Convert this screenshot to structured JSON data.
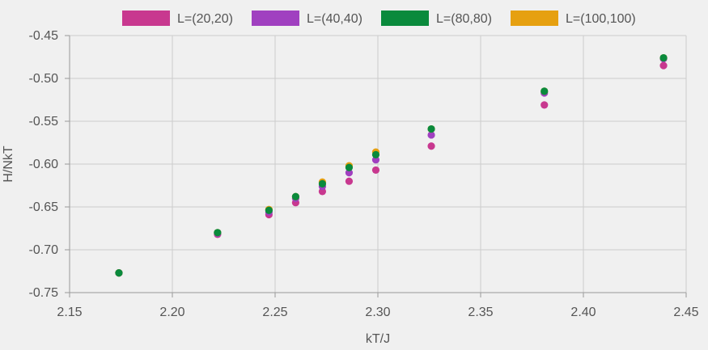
{
  "chart_data": {
    "type": "scatter",
    "xlabel": "kT/J",
    "ylabel": "H/NkT",
    "xlim": [
      2.15,
      2.45
    ],
    "ylim": [
      -0.75,
      -0.45
    ],
    "xticks": [
      "2.15",
      "2.20",
      "2.25",
      "2.30",
      "2.35",
      "2.40",
      "2.45"
    ],
    "yticks": [
      "-0.45",
      "-0.50",
      "-0.55",
      "-0.60",
      "-0.65",
      "-0.70",
      "-0.75"
    ],
    "grid": true,
    "legend_position": "top",
    "x": [
      2.174,
      2.222,
      2.247,
      2.26,
      2.273,
      2.286,
      2.299,
      2.326,
      2.381,
      2.439
    ],
    "series": [
      {
        "name": "L=(20,20)",
        "color": "#c8388f",
        "values": [
          -0.727,
          -0.682,
          -0.659,
          -0.645,
          -0.632,
          -0.62,
          -0.607,
          -0.579,
          -0.531,
          -0.485
        ]
      },
      {
        "name": "L=(40,40)",
        "color": "#a040c0",
        "values": [
          -0.727,
          -0.681,
          -0.656,
          -0.64,
          -0.626,
          -0.61,
          -0.595,
          -0.566,
          -0.517,
          -0.477
        ]
      },
      {
        "name": "L=(100,100)",
        "color": "#e6a010",
        "values": [
          -0.727,
          -0.68,
          -0.653,
          -0.638,
          -0.621,
          -0.602,
          -0.586,
          -0.559,
          -0.515,
          -0.476
        ]
      },
      {
        "name": "L=(80,80)",
        "color": "#0a8a3c",
        "values": [
          -0.727,
          -0.68,
          -0.654,
          -0.638,
          -0.623,
          -0.604,
          -0.589,
          -0.559,
          -0.515,
          -0.476
        ]
      }
    ],
    "legend": [
      {
        "name": "L=(20,20)",
        "color": "#c8388f"
      },
      {
        "name": "L=(40,40)",
        "color": "#a040c0"
      },
      {
        "name": "L=(80,80)",
        "color": "#0a8a3c"
      },
      {
        "name": "L=(100,100)",
        "color": "#e6a010"
      }
    ]
  }
}
